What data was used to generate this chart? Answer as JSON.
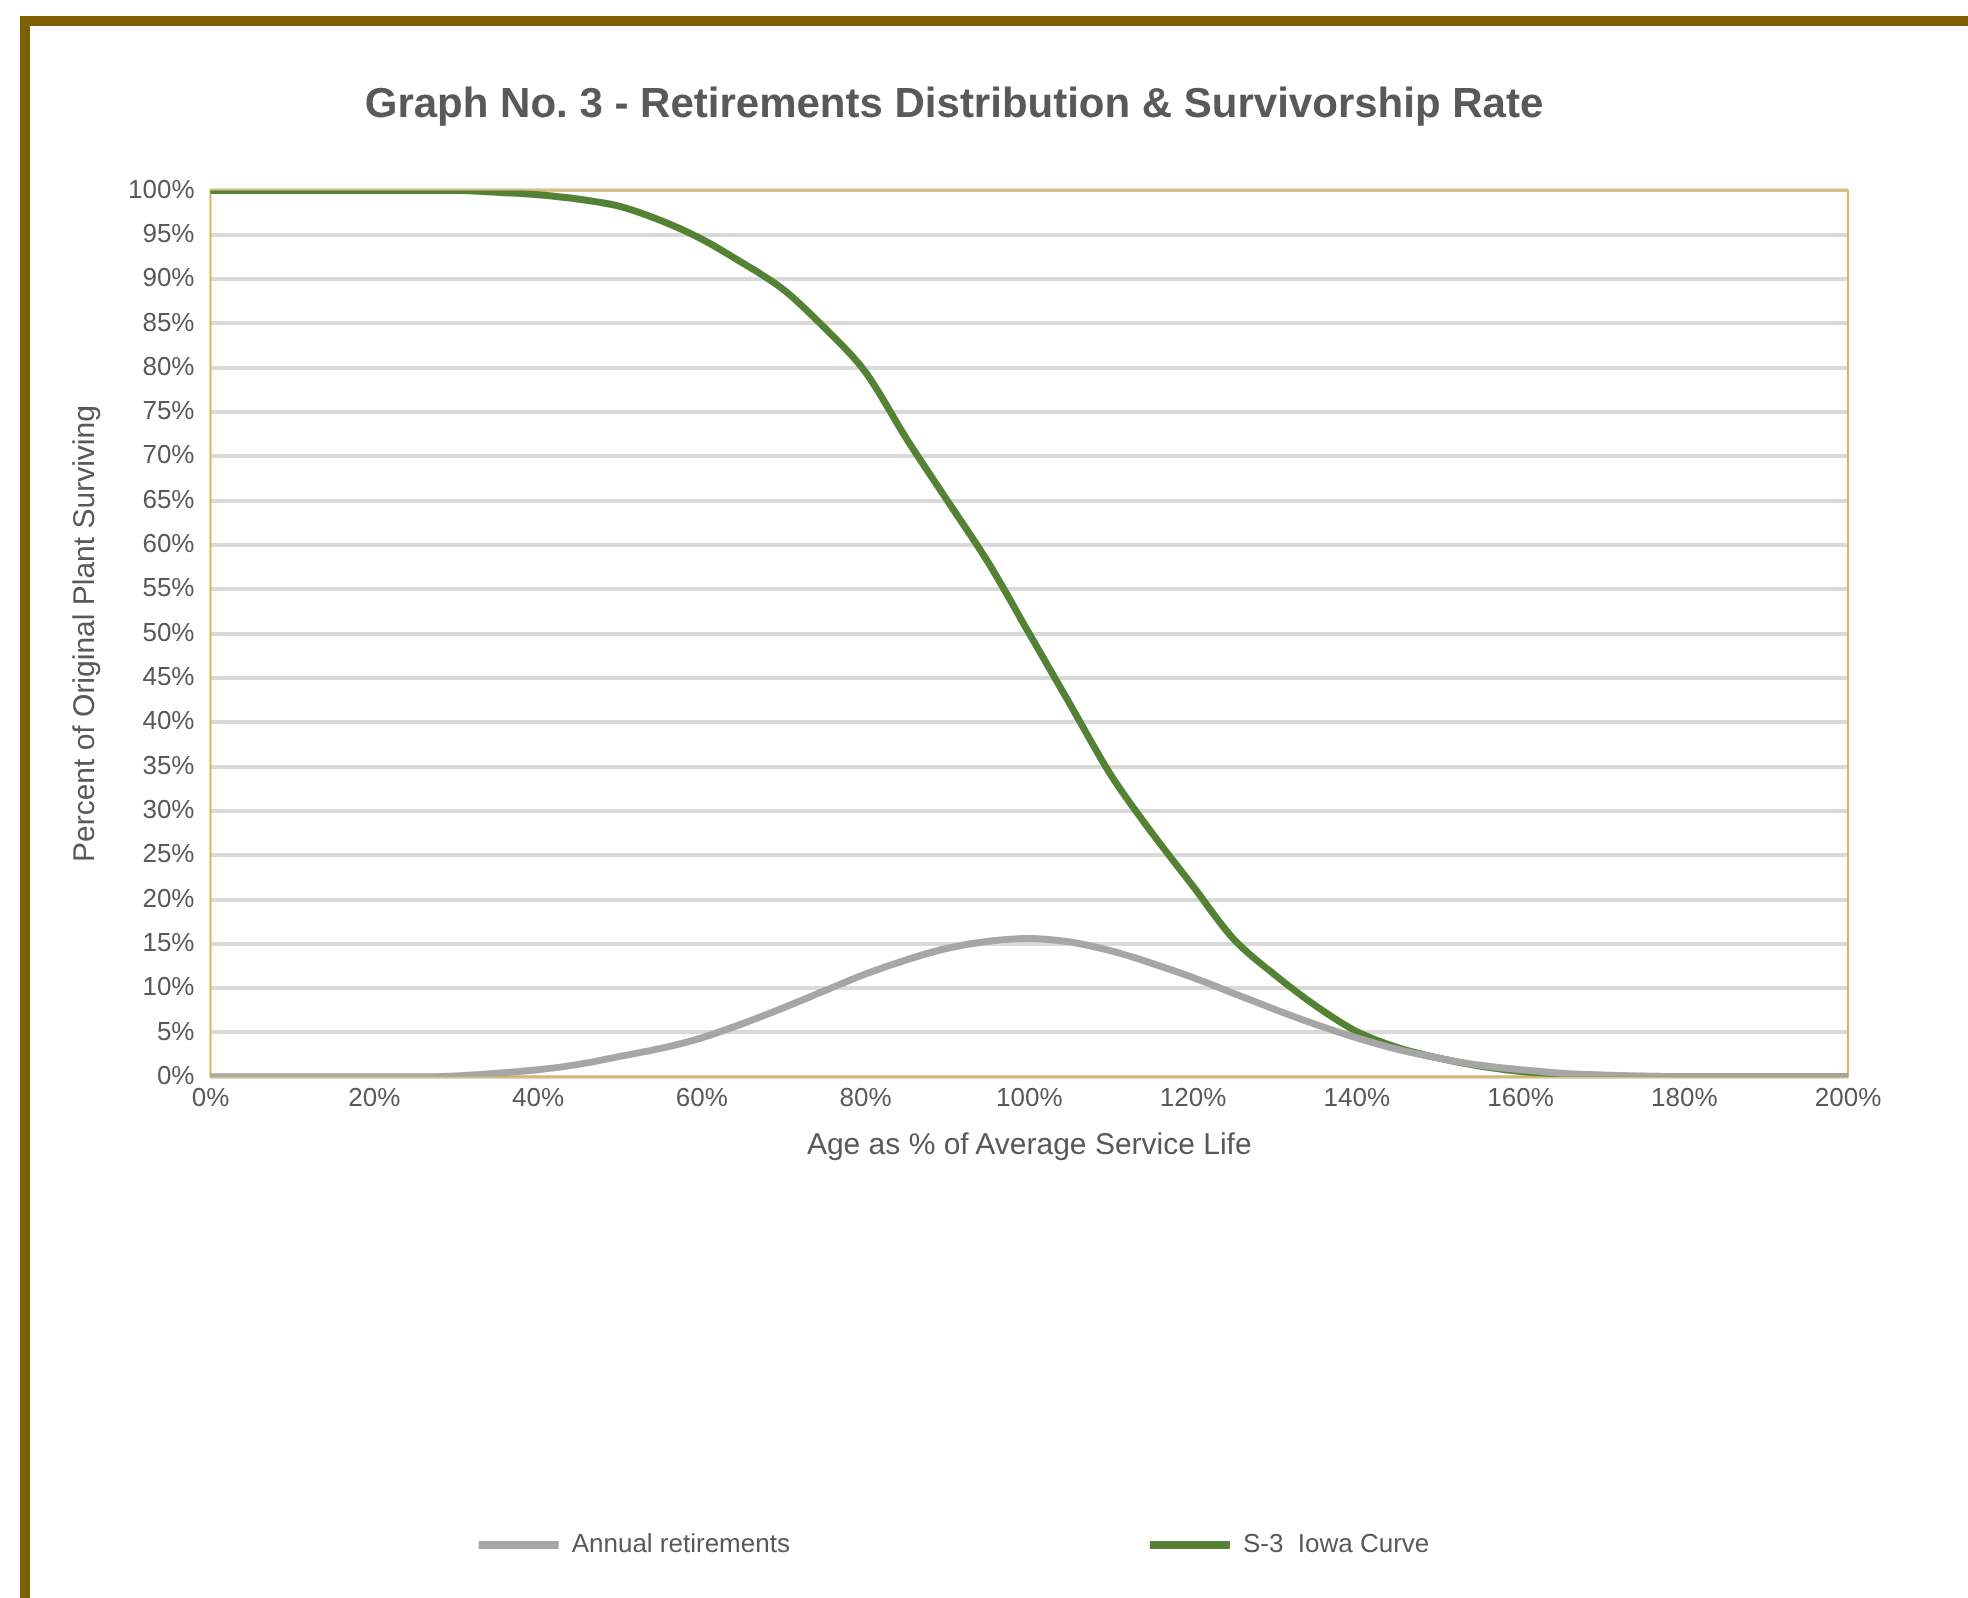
{
  "chart_data": {
    "type": "line",
    "title": "Graph No. 3 - Retirements Distribution & Survivorship Rate",
    "xlabel": "Age as % of Average Service Life",
    "ylabel": "Percent of Original Plant Surviving",
    "x": [
      0,
      5,
      10,
      15,
      20,
      25,
      30,
      35,
      40,
      45,
      50,
      55,
      60,
      65,
      70,
      75,
      80,
      85,
      90,
      95,
      100,
      105,
      110,
      115,
      120,
      125,
      130,
      135,
      140,
      145,
      150,
      155,
      160,
      165,
      170,
      175,
      180,
      185,
      190,
      195,
      200
    ],
    "series": [
      {
        "name": "Annual retirements",
        "color": "#a6a6a6",
        "values": [
          0,
          0,
          0,
          0,
          0,
          0,
          0.1,
          0.4,
          0.8,
          1.4,
          2.3,
          3.2,
          4.4,
          6,
          7.8,
          9.7,
          11.6,
          13.2,
          14.5,
          15.3,
          15.6,
          15.2,
          14.2,
          12.8,
          11.2,
          9.4,
          7.6,
          5.9,
          4.4,
          3.1,
          2.1,
          1.3,
          0.8,
          0.4,
          0.2,
          0.1,
          0,
          0,
          0,
          0,
          0
        ]
      },
      {
        "name": "S-3  Iowa Curve",
        "color": "#548235",
        "values": [
          100,
          100,
          100,
          100,
          100,
          100,
          100,
          99.8,
          99.5,
          99,
          98.2,
          96.6,
          94.5,
          91.8,
          88.8,
          84.5,
          79.5,
          72,
          65,
          58,
          50,
          42,
          34,
          27.5,
          21.5,
          15.5,
          11.5,
          8,
          5.1,
          3.3,
          2.1,
          1.2,
          0.6,
          0.3,
          0.1,
          0,
          0,
          0,
          0,
          0,
          0
        ]
      }
    ],
    "xlim": [
      0,
      200
    ],
    "xticks": [
      {
        "value": 0,
        "label": "0%"
      },
      {
        "value": 20,
        "label": "20%"
      },
      {
        "value": 40,
        "label": "40%"
      },
      {
        "value": 60,
        "label": "60%"
      },
      {
        "value": 80,
        "label": "80%"
      },
      {
        "value": 100,
        "label": "100%"
      },
      {
        "value": 120,
        "label": "120%"
      },
      {
        "value": 140,
        "label": "140%"
      },
      {
        "value": 160,
        "label": "160%"
      },
      {
        "value": 180,
        "label": "180%"
      },
      {
        "value": 200,
        "label": "200%"
      }
    ],
    "ylim": [
      0,
      100
    ],
    "yticks": [
      {
        "value": 0,
        "label": "0%"
      },
      {
        "value": 5,
        "label": "5%"
      },
      {
        "value": 10,
        "label": "10%"
      },
      {
        "value": 15,
        "label": "15%"
      },
      {
        "value": 20,
        "label": "20%"
      },
      {
        "value": 25,
        "label": "25%"
      },
      {
        "value": 30,
        "label": "30%"
      },
      {
        "value": 35,
        "label": "35%"
      },
      {
        "value": 40,
        "label": "40%"
      },
      {
        "value": 45,
        "label": "45%"
      },
      {
        "value": 50,
        "label": "50%"
      },
      {
        "value": 55,
        "label": "55%"
      },
      {
        "value": 60,
        "label": "60%"
      },
      {
        "value": 65,
        "label": "65%"
      },
      {
        "value": 70,
        "label": "70%"
      },
      {
        "value": 75,
        "label": "75%"
      },
      {
        "value": 80,
        "label": "80%"
      },
      {
        "value": 85,
        "label": "85%"
      },
      {
        "value": 90,
        "label": "90%"
      },
      {
        "value": 95,
        "label": "95%"
      },
      {
        "value": 100,
        "label": "100%"
      }
    ],
    "grid": "y",
    "legend": "bottom",
    "marker": "none",
    "line_style": "solid"
  }
}
